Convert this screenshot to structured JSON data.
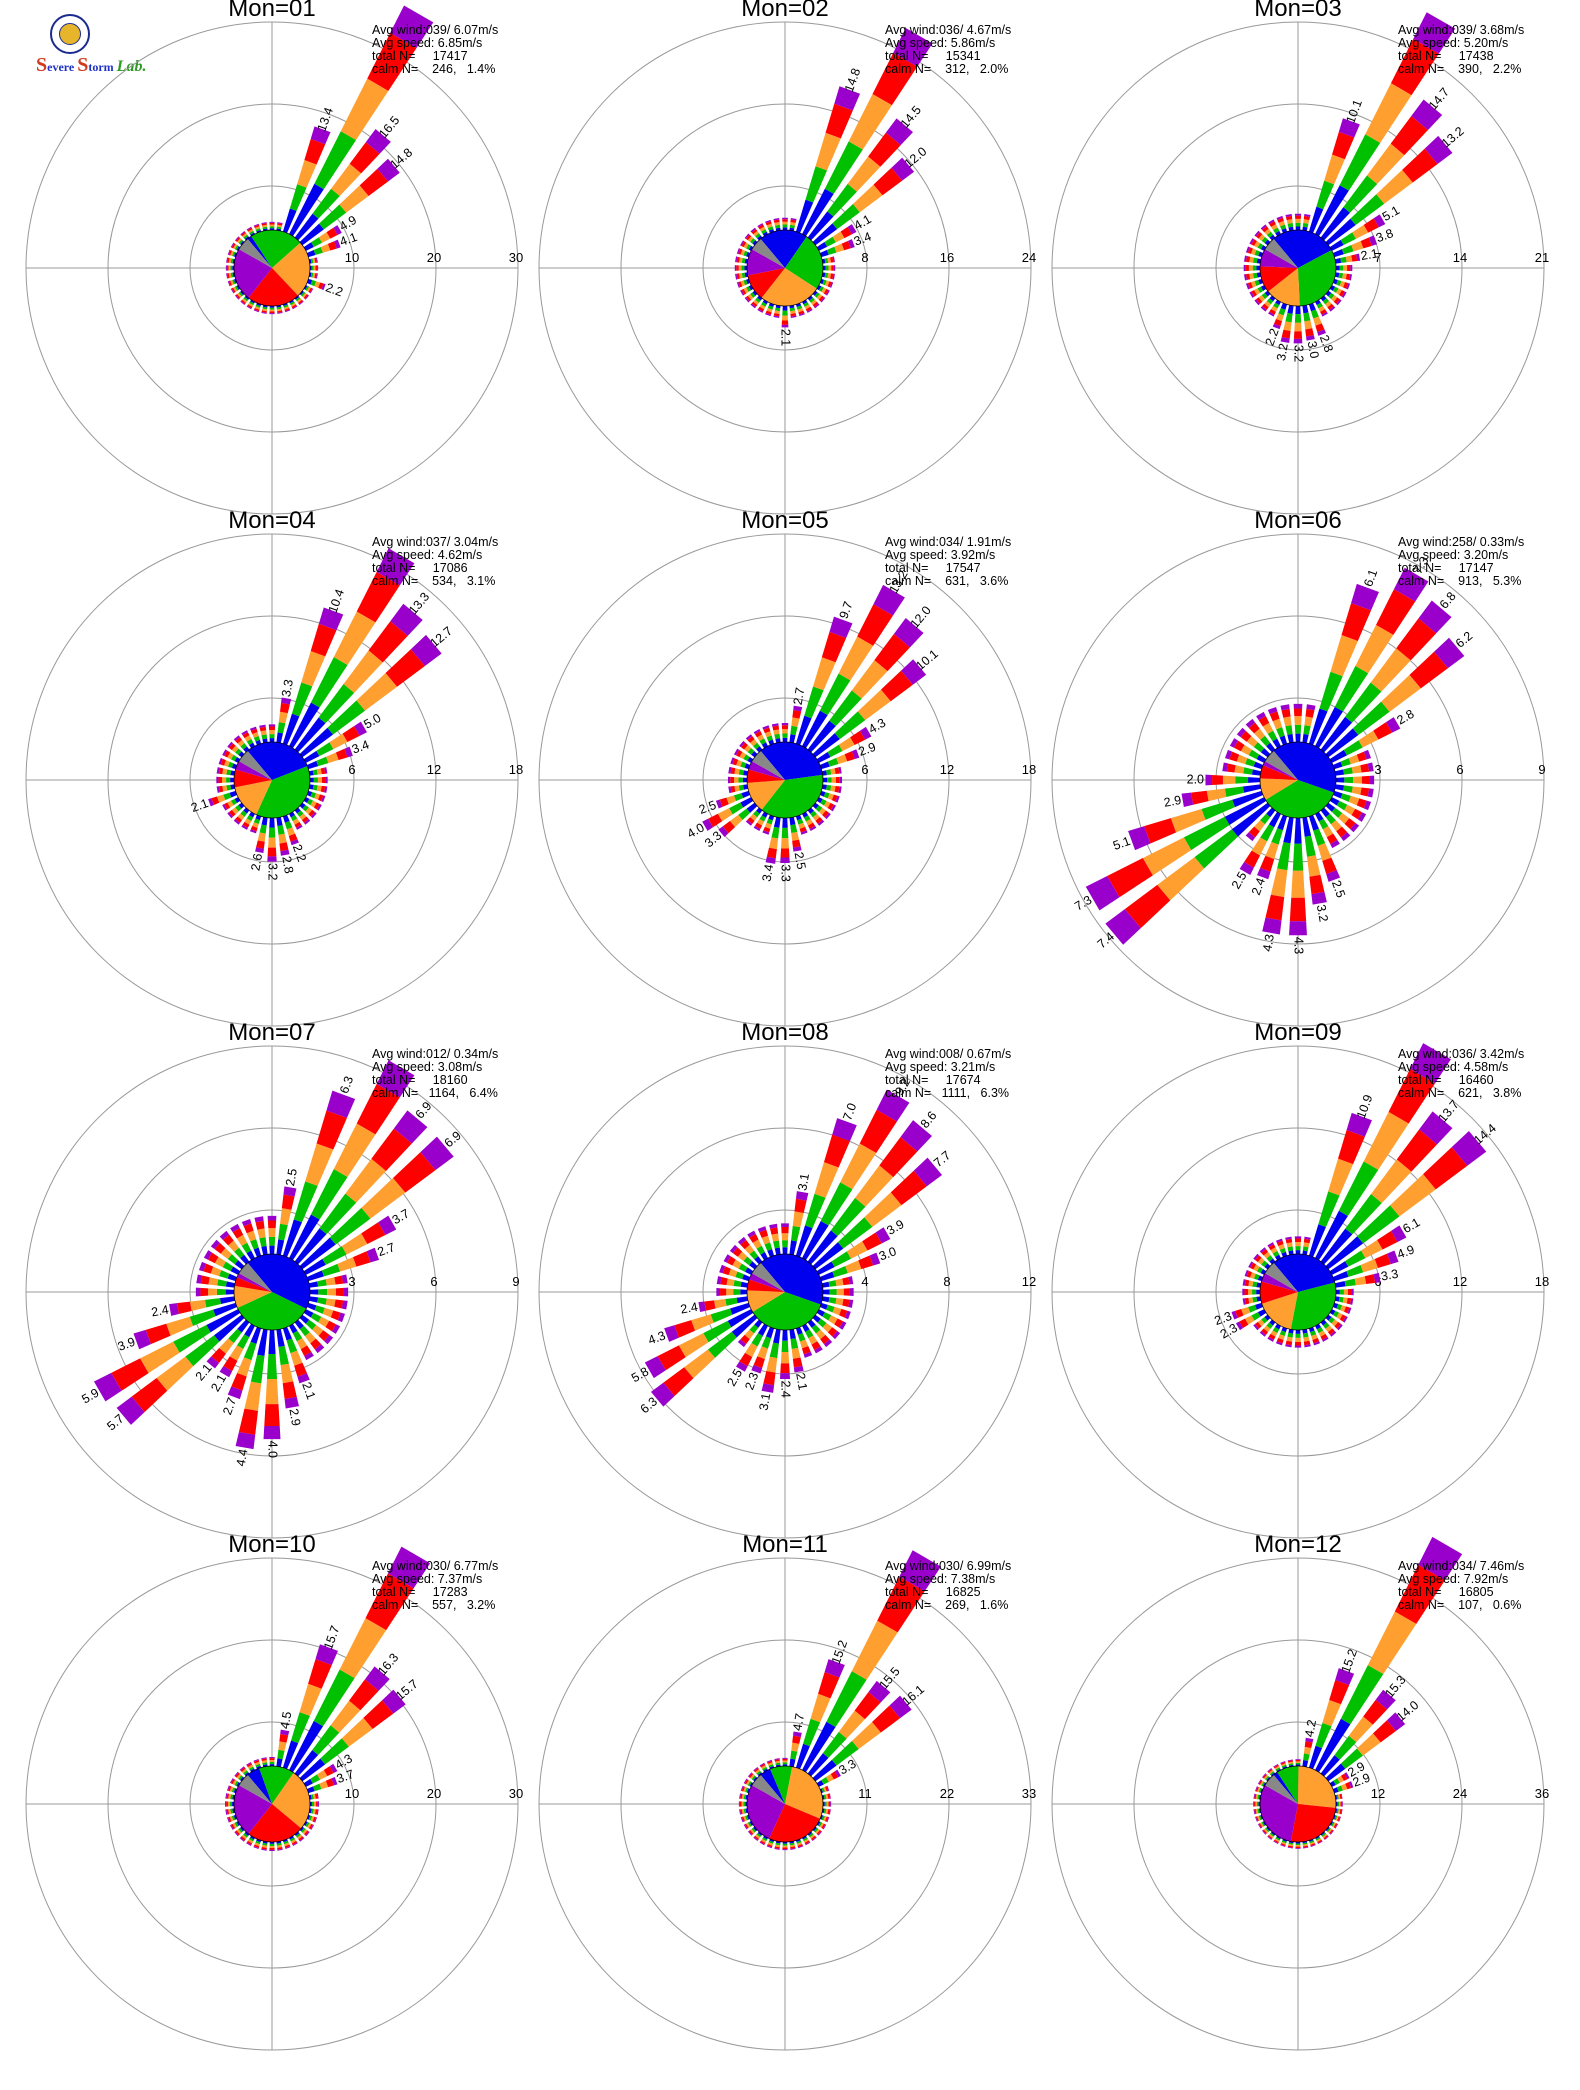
{
  "logo": {
    "initial": "S",
    "word1": "evere",
    "word2": "torm",
    "word3": "Lab."
  },
  "colors": {
    "speed_bins": [
      "#0000ee",
      "#00c000",
      "#ff9f30",
      "#ff0000",
      "#9900cc"
    ],
    "calm": "#888888",
    "grid": "#999999"
  },
  "chart_data": [
    {
      "type": "wind-rose",
      "title": "Mon=01",
      "info": [
        "Avg wind:039/ 6.07m/s",
        "Avg speed: 6.85m/s",
        "total N=     17417",
        "calm N=    246,   1.4%"
      ],
      "rings": [
        10,
        20,
        30
      ],
      "rmax": 30,
      "pie": [
        0.02,
        0.24,
        0.26,
        0.24,
        0.24
      ],
      "directions": [
        {
          "dir": 30,
          "pct": 31.2,
          "label": ""
        },
        {
          "dir": 40,
          "pct": 16.5,
          "label": "16.5"
        },
        {
          "dir": 50,
          "pct": 14.8,
          "label": "14.8"
        },
        {
          "dir": 20,
          "pct": 13.4,
          "label": "13.4"
        },
        {
          "dir": 60,
          "pct": 4.9,
          "label": "4.9"
        },
        {
          "dir": 70,
          "pct": 4.1,
          "label": "4.1"
        },
        {
          "dir": 110,
          "pct": 2.2,
          "label": "2.2"
        }
      ],
      "pct_minor": 1.0
    },
    {
      "type": "wind-rose",
      "title": "Mon=02",
      "info": [
        "Avg wind:036/ 4.67m/s",
        "Avg speed: 5.86m/s",
        "total N=     15341",
        "calm N=    312,   2.0%"
      ],
      "rings": [
        8,
        16,
        24
      ],
      "rmax": 24,
      "pie": [
        0.22,
        0.26,
        0.28,
        0.12,
        0.12
      ],
      "directions": [
        {
          "dir": 30,
          "pct": 22.5,
          "label": ""
        },
        {
          "dir": 20,
          "pct": 14.8,
          "label": "14.8"
        },
        {
          "dir": 40,
          "pct": 14.5,
          "label": "14.5"
        },
        {
          "dir": 50,
          "pct": 12.0,
          "label": "12.0"
        },
        {
          "dir": 60,
          "pct": 4.1,
          "label": "4.1"
        },
        {
          "dir": 70,
          "pct": 3.4,
          "label": "3.4"
        },
        {
          "dir": 180,
          "pct": 2.1,
          "label": "2.1"
        }
      ],
      "pct_minor": 1.2
    },
    {
      "type": "wind-rose",
      "title": "Mon=03",
      "info": [
        "Avg wind:039/ 3.68m/s",
        "Avg speed: 5.20m/s",
        "total N=     17438",
        "calm N=    390,   2.2%"
      ],
      "rings": [
        7,
        14,
        21
      ],
      "rmax": 21,
      "pie": [
        0.3,
        0.34,
        0.16,
        0.12,
        0.08
      ],
      "directions": [
        {
          "dir": 30,
          "pct": 21.2,
          "label": ""
        },
        {
          "dir": 40,
          "pct": 14.7,
          "label": "14.7"
        },
        {
          "dir": 50,
          "pct": 13.2,
          "label": "13.2"
        },
        {
          "dir": 20,
          "pct": 10.1,
          "label": "10.1"
        },
        {
          "dir": 60,
          "pct": 5.1,
          "label": "5.1"
        },
        {
          "dir": 70,
          "pct": 3.8,
          "label": "3.8"
        },
        {
          "dir": 80,
          "pct": 2.1,
          "label": "2.1"
        },
        {
          "dir": 160,
          "pct": 2.8,
          "label": "2.8"
        },
        {
          "dir": 170,
          "pct": 3.0,
          "label": "3.0"
        },
        {
          "dir": 180,
          "pct": 3.2,
          "label": "3.2"
        },
        {
          "dir": 190,
          "pct": 3.2,
          "label": "3.2"
        },
        {
          "dir": 200,
          "pct": 2.2,
          "label": "2.2"
        }
      ],
      "pct_minor": 1.4
    },
    {
      "type": "wind-rose",
      "title": "Mon=04",
      "info": [
        "Avg wind:037/ 3.04m/s",
        "Avg speed: 4.62m/s",
        "total N=     17086",
        "calm N=    534,   3.1%"
      ],
      "rings": [
        6,
        12,
        18
      ],
      "rmax": 18,
      "pie": [
        0.32,
        0.4,
        0.16,
        0.08,
        0.04
      ],
      "directions": [
        {
          "dir": 30,
          "pct": 16.2,
          "label": ""
        },
        {
          "dir": 40,
          "pct": 13.3,
          "label": "13.3"
        },
        {
          "dir": 50,
          "pct": 12.7,
          "label": "12.7"
        },
        {
          "dir": 20,
          "pct": 10.4,
          "label": "10.4"
        },
        {
          "dir": 60,
          "pct": 5.0,
          "label": "5.0"
        },
        {
          "dir": 70,
          "pct": 3.4,
          "label": "3.4"
        },
        {
          "dir": 10,
          "pct": 3.3,
          "label": "3.3"
        },
        {
          "dir": 160,
          "pct": 2.2,
          "label": "2.2"
        },
        {
          "dir": 170,
          "pct": 2.8,
          "label": "2.8"
        },
        {
          "dir": 180,
          "pct": 3.2,
          "label": "3.2"
        },
        {
          "dir": 190,
          "pct": 2.6,
          "label": "2.6"
        },
        {
          "dir": 250,
          "pct": 2.1,
          "label": "2.1"
        }
      ],
      "pct_minor": 1.3
    },
    {
      "type": "wind-rose",
      "title": "Mon=05",
      "info": [
        "Avg wind:034/ 1.91m/s",
        "Avg speed: 3.92m/s",
        "total N=     17547",
        "calm N=    631,   3.6%"
      ],
      "rings": [
        6,
        12,
        18
      ],
      "rmax": 18,
      "pie": [
        0.36,
        0.4,
        0.14,
        0.06,
        0.04
      ],
      "directions": [
        {
          "dir": 30,
          "pct": 13.2,
          "label": "13.2"
        },
        {
          "dir": 40,
          "pct": 12.0,
          "label": "12.0"
        },
        {
          "dir": 50,
          "pct": 10.1,
          "label": "10.1"
        },
        {
          "dir": 20,
          "pct": 9.7,
          "label": "9.7"
        },
        {
          "dir": 60,
          "pct": 4.3,
          "label": "4.3"
        },
        {
          "dir": 70,
          "pct": 2.9,
          "label": "2.9"
        },
        {
          "dir": 10,
          "pct": 2.7,
          "label": "2.7"
        },
        {
          "dir": 170,
          "pct": 2.5,
          "label": "2.5"
        },
        {
          "dir": 180,
          "pct": 3.3,
          "label": "3.3"
        },
        {
          "dir": 190,
          "pct": 3.4,
          "label": "3.4"
        },
        {
          "dir": 230,
          "pct": 3.3,
          "label": "3.3"
        },
        {
          "dir": 240,
          "pct": 4.0,
          "label": "4.0"
        },
        {
          "dir": 250,
          "pct": 2.5,
          "label": "2.5"
        }
      ],
      "pct_minor": 1.4
    },
    {
      "type": "wind-rose",
      "title": "Mon=06",
      "info": [
        "Avg wind:258/ 0.33m/s",
        "Avg speed: 3.20m/s",
        "total N=     17147",
        "calm N=    913,   5.3%"
      ],
      "rings": [
        3,
        6,
        9
      ],
      "rmax": 9,
      "pie": [
        0.44,
        0.38,
        0.1,
        0.06,
        0.02
      ],
      "directions": [
        {
          "dir": 30,
          "pct": 7.3,
          "label": "7.3"
        },
        {
          "dir": 40,
          "pct": 6.8,
          "label": "6.8"
        },
        {
          "dir": 50,
          "pct": 6.2,
          "label": "6.2"
        },
        {
          "dir": 20,
          "pct": 6.1,
          "label": "6.1"
        },
        {
          "dir": 60,
          "pct": 2.8,
          "label": "2.8"
        },
        {
          "dir": 230,
          "pct": 7.4,
          "label": "7.4"
        },
        {
          "dir": 240,
          "pct": 7.3,
          "label": "7.3"
        },
        {
          "dir": 250,
          "pct": 5.1,
          "label": "5.1"
        },
        {
          "dir": 260,
          "pct": 2.9,
          "label": "2.9"
        },
        {
          "dir": 270,
          "pct": 2.0,
          "label": "2.0"
        },
        {
          "dir": 210,
          "pct": 2.5,
          "label": "2.5"
        },
        {
          "dir": 200,
          "pct": 2.4,
          "label": "2.4"
        },
        {
          "dir": 190,
          "pct": 4.3,
          "label": "4.3"
        },
        {
          "dir": 180,
          "pct": 4.3,
          "label": "4.3"
        },
        {
          "dir": 170,
          "pct": 3.2,
          "label": "3.2"
        },
        {
          "dir": 160,
          "pct": 2.5,
          "label": "2.5"
        }
      ],
      "pct_minor": 1.4
    },
    {
      "type": "wind-rose",
      "title": "Mon=07",
      "info": [
        "Avg wind:012/ 0.34m/s",
        "Avg speed: 3.08m/s",
        "total N=     18160",
        "calm N=   1164,   6.4%"
      ],
      "rings": [
        3,
        6,
        9
      ],
      "rmax": 9,
      "pie": [
        0.46,
        0.38,
        0.1,
        0.04,
        0.02
      ],
      "directions": [
        {
          "dir": 30,
          "pct": 8.1,
          "label": ""
        },
        {
          "dir": 40,
          "pct": 6.9,
          "label": "6.9"
        },
        {
          "dir": 50,
          "pct": 6.9,
          "label": "6.9"
        },
        {
          "dir": 20,
          "pct": 6.3,
          "label": "6.3"
        },
        {
          "dir": 60,
          "pct": 3.7,
          "label": "3.7"
        },
        {
          "dir": 70,
          "pct": 2.7,
          "label": "2.7"
        },
        {
          "dir": 10,
          "pct": 2.5,
          "label": "2.5"
        },
        {
          "dir": 230,
          "pct": 5.7,
          "label": "5.7"
        },
        {
          "dir": 240,
          "pct": 5.9,
          "label": "5.9"
        },
        {
          "dir": 250,
          "pct": 3.9,
          "label": "3.9"
        },
        {
          "dir": 260,
          "pct": 2.4,
          "label": "2.4"
        },
        {
          "dir": 220,
          "pct": 2.1,
          "label": "2.1"
        },
        {
          "dir": 210,
          "pct": 2.1,
          "label": "2.1"
        },
        {
          "dir": 200,
          "pct": 2.7,
          "label": "2.7"
        },
        {
          "dir": 190,
          "pct": 4.4,
          "label": "4.4"
        },
        {
          "dir": 180,
          "pct": 4.0,
          "label": "4.0"
        },
        {
          "dir": 170,
          "pct": 2.9,
          "label": "2.9"
        },
        {
          "dir": 160,
          "pct": 2.1,
          "label": "2.1"
        }
      ],
      "pct_minor": 1.4
    },
    {
      "type": "wind-rose",
      "title": "Mon=08",
      "info": [
        "Avg wind:008/ 0.67m/s",
        "Avg speed: 3.21m/s",
        "total N=     17674",
        "calm N=   1111,   6.3%"
      ],
      "rings": [
        4,
        8,
        12
      ],
      "rmax": 12,
      "pie": [
        0.44,
        0.38,
        0.1,
        0.05,
        0.03
      ],
      "directions": [
        {
          "dir": 30,
          "pct": 9.2,
          "label": "9.2"
        },
        {
          "dir": 40,
          "pct": 8.6,
          "label": "8.6"
        },
        {
          "dir": 50,
          "pct": 7.7,
          "label": "7.7"
        },
        {
          "dir": 20,
          "pct": 7.0,
          "label": "7.0"
        },
        {
          "dir": 60,
          "pct": 3.9,
          "label": "3.9"
        },
        {
          "dir": 70,
          "pct": 3.0,
          "label": "3.0"
        },
        {
          "dir": 10,
          "pct": 3.1,
          "label": "3.1"
        },
        {
          "dir": 230,
          "pct": 6.3,
          "label": "6.3"
        },
        {
          "dir": 240,
          "pct": 5.8,
          "label": "5.8"
        },
        {
          "dir": 250,
          "pct": 4.3,
          "label": "4.3"
        },
        {
          "dir": 260,
          "pct": 2.4,
          "label": "2.4"
        },
        {
          "dir": 210,
          "pct": 2.5,
          "label": "2.5"
        },
        {
          "dir": 200,
          "pct": 2.3,
          "label": "2.3"
        },
        {
          "dir": 190,
          "pct": 3.1,
          "label": "3.1"
        },
        {
          "dir": 180,
          "pct": 2.4,
          "label": "2.4"
        },
        {
          "dir": 170,
          "pct": 2.1,
          "label": "2.1"
        }
      ],
      "pct_minor": 1.5
    },
    {
      "type": "wind-rose",
      "title": "Mon=09",
      "info": [
        "Avg wind:036/ 3.42m/s",
        "Avg speed: 4.58m/s",
        "total N=     16460",
        "calm N=    621,   3.8%"
      ],
      "rings": [
        6,
        12,
        18
      ],
      "rmax": 18,
      "pie": [
        0.34,
        0.34,
        0.18,
        0.1,
        0.04
      ],
      "directions": [
        {
          "dir": 30,
          "pct": 17.6,
          "label": ""
        },
        {
          "dir": 40,
          "pct": 13.7,
          "label": "13.7"
        },
        {
          "dir": 50,
          "pct": 14.4,
          "label": "14.4"
        },
        {
          "dir": 20,
          "pct": 10.9,
          "label": "10.9"
        },
        {
          "dir": 60,
          "pct": 6.1,
          "label": "6.1"
        },
        {
          "dir": 70,
          "pct": 4.9,
          "label": "4.9"
        },
        {
          "dir": 80,
          "pct": 3.3,
          "label": "3.3"
        },
        {
          "dir": 240,
          "pct": 2.3,
          "label": "2.3"
        },
        {
          "dir": 250,
          "pct": 2.3,
          "label": "2.3"
        }
      ],
      "pct_minor": 1.3
    },
    {
      "type": "wind-rose",
      "title": "Mon=10",
      "info": [
        "Avg wind:030/ 6.77m/s",
        "Avg speed: 7.37m/s",
        "total N=     17283",
        "calm N=    557,   3.2%"
      ],
      "rings": [
        10,
        20,
        30
      ],
      "rmax": 30,
      "pie": [
        0.06,
        0.16,
        0.28,
        0.26,
        0.24
      ],
      "directions": [
        {
          "dir": 30,
          "pct": 30.5,
          "label": ""
        },
        {
          "dir": 40,
          "pct": 16.3,
          "label": "16.3"
        },
        {
          "dir": 50,
          "pct": 15.7,
          "label": "15.7"
        },
        {
          "dir": 20,
          "pct": 15.7,
          "label": "15.7"
        },
        {
          "dir": 60,
          "pct": 4.3,
          "label": "4.3"
        },
        {
          "dir": 70,
          "pct": 3.7,
          "label": "3.7"
        },
        {
          "dir": 10,
          "pct": 4.5,
          "label": "4.5"
        }
      ],
      "pct_minor": 1.1
    },
    {
      "type": "wind-rose",
      "title": "Mon=11",
      "info": [
        "Avg wind:030/ 6.99m/s",
        "Avg speed: 7.38m/s",
        "total N=     16825",
        "calm N=    269,   1.6%"
      ],
      "rings": [
        11,
        22,
        33
      ],
      "rmax": 33,
      "pie": [
        0.05,
        0.1,
        0.3,
        0.27,
        0.28
      ],
      "directions": [
        {
          "dir": 30,
          "pct": 33.0,
          "label": ""
        },
        {
          "dir": 40,
          "pct": 15.5,
          "label": "15.5"
        },
        {
          "dir": 50,
          "pct": 16.1,
          "label": "16.1"
        },
        {
          "dir": 20,
          "pct": 15.2,
          "label": "15.2"
        },
        {
          "dir": 60,
          "pct": 3.3,
          "label": "3.3"
        },
        {
          "dir": 10,
          "pct": 4.7,
          "label": "4.7"
        }
      ],
      "pct_minor": 1.1
    },
    {
      "type": "wind-rose",
      "title": "Mon=12",
      "info": [
        "Avg wind:034/ 7.46m/s",
        "Avg speed: 7.92m/s",
        "total N=     16805",
        "calm N=    107,   0.6%"
      ],
      "rings": [
        12,
        24,
        36
      ],
      "rmax": 36,
      "pie": [
        0.02,
        0.1,
        0.28,
        0.28,
        0.32
      ],
      "directions": [
        {
          "dir": 30,
          "pct": 38.2,
          "label": ""
        },
        {
          "dir": 40,
          "pct": 15.3,
          "label": "15.3"
        },
        {
          "dir": 50,
          "pct": 14.0,
          "label": "14.0"
        },
        {
          "dir": 20,
          "pct": 15.2,
          "label": "15.2"
        },
        {
          "dir": 60,
          "pct": 2.9,
          "label": "2.9"
        },
        {
          "dir": 70,
          "pct": 2.9,
          "label": "2.9"
        },
        {
          "dir": 10,
          "pct": 4.2,
          "label": "4.2"
        }
      ],
      "pct_minor": 1.0
    }
  ]
}
